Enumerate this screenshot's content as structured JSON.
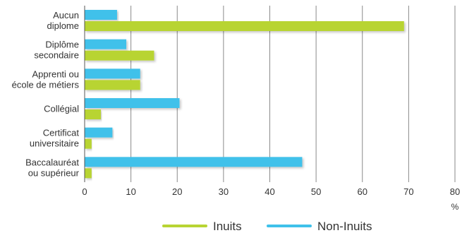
{
  "chart_data": {
    "type": "bar",
    "orientation": "horizontal",
    "categories": [
      [
        "Aucun",
        "diplome"
      ],
      [
        "Diplôme",
        "secondaire"
      ],
      [
        "Apprenti ou",
        "école de métiers"
      ],
      [
        "Collégial"
      ],
      [
        "Certificat",
        "universitaire"
      ],
      [
        "Baccalauréat",
        "ou supérieur"
      ]
    ],
    "series": [
      {
        "name": "Non-Inuits",
        "color": "#3fc1ea",
        "values": [
          7,
          9,
          12,
          20.5,
          6,
          47
        ]
      },
      {
        "name": "Inuits",
        "color": "#b8d433",
        "values": [
          69,
          15,
          12,
          3.5,
          1.5,
          1.5
        ]
      }
    ],
    "xlim": [
      0,
      80
    ],
    "xticks": [
      "0",
      "10",
      "20",
      "30",
      "40",
      "50",
      "60",
      "70",
      "80"
    ],
    "xunit": "%",
    "grid": true,
    "legend_position": "bottom",
    "legend_order": [
      "Inuits",
      "Non-Inuits"
    ]
  }
}
